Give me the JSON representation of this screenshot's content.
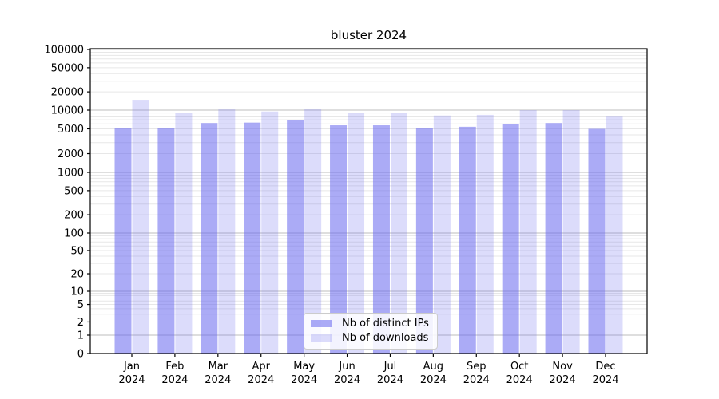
{
  "chart_data": {
    "type": "bar",
    "title": "bluster 2024",
    "categories": [
      "Jan 2024",
      "Feb 2024",
      "Mar 2024",
      "Apr 2024",
      "May 2024",
      "Jun 2024",
      "Jul 2024",
      "Aug 2024",
      "Sep 2024",
      "Oct 2024",
      "Nov 2024",
      "Dec 2024"
    ],
    "series": [
      {
        "name": "Nb of distinct IPs",
        "color": "#6666ee",
        "alpha": 0.55,
        "values": [
          5200,
          5100,
          6200,
          6300,
          6900,
          5700,
          5700,
          5100,
          5400,
          6000,
          6200,
          5000
        ]
      },
      {
        "name": "Nb of downloads",
        "color": "#6666ee",
        "alpha": 0.23,
        "values": [
          14800,
          8900,
          10300,
          9500,
          10600,
          8900,
          9100,
          8200,
          8400,
          10000,
          10000,
          8100
        ]
      }
    ],
    "yscale": "symlog",
    "y_ticks": [
      0,
      1,
      2,
      5,
      10,
      20,
      50,
      100,
      200,
      500,
      1000,
      2000,
      5000,
      10000,
      20000,
      50000,
      100000
    ],
    "ylim": [
      0,
      100000
    ],
    "xlabel": "",
    "ylabel": "",
    "grid": true,
    "legend": {
      "position": "lower center",
      "entries": [
        "Nb of distinct IPs",
        "Nb of downloads"
      ]
    },
    "colors": {
      "major_grid": "#bebebe",
      "minor_grid": "#e7e7e7",
      "axis": "#000000",
      "background": "#ffffff"
    }
  }
}
